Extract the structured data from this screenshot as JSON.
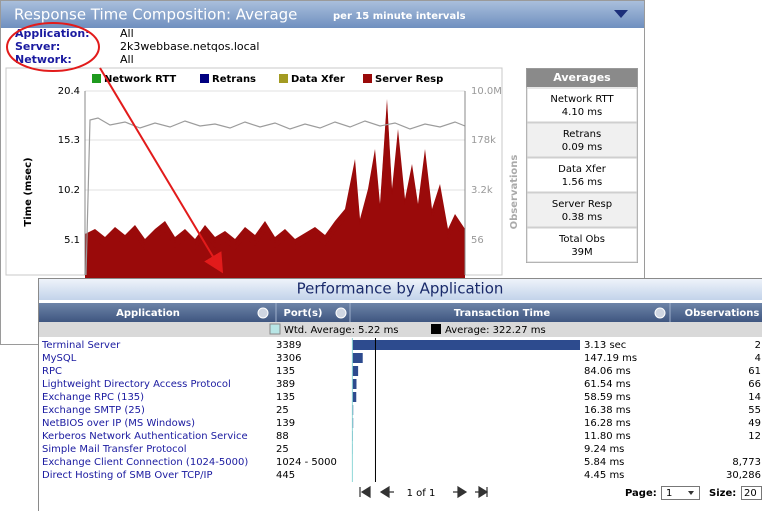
{
  "top_panel": {
    "title": "Response Time Composition: Average",
    "subtitle": "per 15 minute intervals",
    "filters": [
      {
        "label": "Application:",
        "value": "All"
      },
      {
        "label": "Server:",
        "value": "2k3webbase.netqos.local"
      },
      {
        "label": "Network:",
        "value": "All"
      }
    ],
    "legend": [
      {
        "name": "Network RTT",
        "color": "#1e9a1e"
      },
      {
        "name": "Retrans",
        "color": "#000080"
      },
      {
        "name": "Data Xfer",
        "color": "#a39b22"
      },
      {
        "name": "Server Resp",
        "color": "#9a0a0a"
      }
    ],
    "left_axis": {
      "title": "Time (msec)",
      "ticks": [
        "20.4",
        "15.3",
        "10.2",
        "5.1"
      ]
    },
    "right_axis": {
      "title": "Observations",
      "ticks": [
        "10.0M",
        "178k",
        "3.2k",
        "56"
      ]
    },
    "averages": {
      "title": "Averages",
      "items": [
        {
          "label": "Network RTT",
          "value": "4.10 ms"
        },
        {
          "label": "Retrans",
          "value": "0.09 ms"
        },
        {
          "label": "Data Xfer",
          "value": "1.56 ms"
        },
        {
          "label": "Server Resp",
          "value": "0.38 ms"
        },
        {
          "label": "Total Obs",
          "value": "39M"
        }
      ]
    }
  },
  "bottom_panel": {
    "title": "Performance by Application",
    "columns": [
      "Application",
      "Port(s)",
      "Transaction Time",
      "Observations"
    ],
    "wtd_average": {
      "value": 5.22,
      "label": "Wtd. Average: 5.22 ms"
    },
    "average": {
      "value": 322.27,
      "label": "Average: 322.27 ms"
    },
    "rows": [
      {
        "application": "Terminal Server",
        "ports": "3389",
        "time": {
          "value": 3130,
          "label": "3.13 sec"
        },
        "observations": "2"
      },
      {
        "application": "MySQL",
        "ports": "3306",
        "time": {
          "value": 147.19,
          "label": "147.19 ms"
        },
        "observations": "4"
      },
      {
        "application": "RPC",
        "ports": "135",
        "time": {
          "value": 84.06,
          "label": "84.06 ms"
        },
        "observations": "61"
      },
      {
        "application": "Lightweight Directory Access Protocol",
        "ports": "389",
        "time": {
          "value": 61.54,
          "label": "61.54 ms"
        },
        "observations": "66"
      },
      {
        "application": "Exchange RPC (135)",
        "ports": "135",
        "time": {
          "value": 58.59,
          "label": "58.59 ms"
        },
        "observations": "14"
      },
      {
        "application": "Exchange SMTP (25)",
        "ports": "25",
        "time": {
          "value": 16.38,
          "label": "16.38 ms"
        },
        "observations": "55"
      },
      {
        "application": "NetBIOS over IP (MS Windows)",
        "ports": "139",
        "time": {
          "value": 16.28,
          "label": "16.28 ms"
        },
        "observations": "49"
      },
      {
        "application": "Kerberos Network Authentication Service",
        "ports": "88",
        "time": {
          "value": 11.8,
          "label": "11.80 ms"
        },
        "observations": "12"
      },
      {
        "application": "Simple Mail Transfer Protocol",
        "ports": "25",
        "time": {
          "value": 9.24,
          "label": "9.24 ms"
        }
      },
      {
        "application": "Exchange Client Connection (1024-5000)",
        "ports": "1024 - 5000",
        "time": {
          "value": 5.84,
          "label": "5.84 ms"
        },
        "observations": "8,773"
      },
      {
        "application": "Direct Hosting of SMB Over TCP/IP",
        "ports": "445",
        "time": {
          "value": 4.45,
          "label": "4.45 ms"
        },
        "observations": "30,286"
      }
    ],
    "pager": {
      "text": "1 of 1",
      "page_label": "Page:",
      "page": "1",
      "size_label": "Size:",
      "size": "20"
    }
  }
}
